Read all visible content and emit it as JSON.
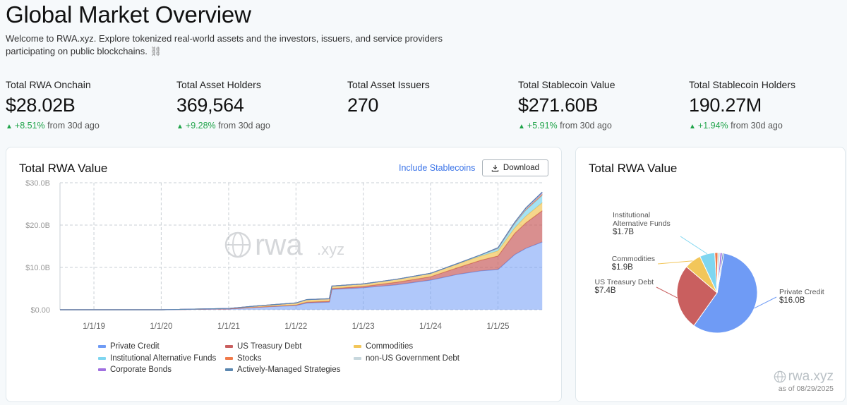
{
  "header": {
    "title": "Global Market Overview",
    "subtitle": "Welcome to RWA.xyz. Explore tokenized real-world assets and the investors, issuers, and service providers participating on public blockchains."
  },
  "stats": [
    {
      "label": "Total RWA Onchain",
      "value": "$28.02B",
      "change": "+8.51%",
      "suffix": "from 30d ago"
    },
    {
      "label": "Total Asset Holders",
      "value": "369,564",
      "change": "+9.28%",
      "suffix": "from 30d ago"
    },
    {
      "label": "Total Asset Issuers",
      "value": "270",
      "change": "",
      "suffix": ""
    },
    {
      "label": "Total Stablecoin Value",
      "value": "$271.60B",
      "change": "+5.91%",
      "suffix": "from 30d ago"
    },
    {
      "label": "Total Stablecoin Holders",
      "value": "190.27M",
      "change": "+1.94%",
      "suffix": "from 30d ago"
    }
  ],
  "area_card": {
    "title": "Total RWA Value",
    "include_stablecoins": "Include Stablecoins",
    "download": "Download",
    "watermark": "rwa.xyz",
    "legend": [
      "Private Credit",
      "US Treasury Debt",
      "Commodities",
      "Institutional Alternative Funds",
      "Stocks",
      "non-US Government Debt",
      "Corporate Bonds",
      "Actively-Managed Strategies"
    ]
  },
  "pie_card": {
    "title": "Total RWA Value",
    "watermark": "rwa.xyz",
    "as_of": "as of 08/29/2025"
  },
  "colors": {
    "private_credit": "#6f9bf5",
    "us_treasury": "#c95f5f",
    "commodities": "#f2c65a",
    "inst_alt_funds": "#7fd6f0",
    "stocks": "#f07a4a",
    "non_us_gov": "#c7d7dd",
    "corporate_bonds": "#a070e0",
    "active_strategies": "#5b87b0",
    "up": "#20a44a"
  },
  "chart_data": [
    {
      "type": "area",
      "title": "Total RWA Value",
      "x_ticks": [
        "1/1/19",
        "1/1/20",
        "1/1/21",
        "1/1/22",
        "1/1/23",
        "1/1/24",
        "1/1/25"
      ],
      "y_ticks": [
        "$0.00",
        "$10.0B",
        "$20.0B",
        "$30.0B"
      ],
      "ylim": [
        0,
        30
      ],
      "y_unit": "B USD",
      "x": [
        "2018-07-01",
        "2019-01-01",
        "2020-01-01",
        "2021-01-01",
        "2021-06-01",
        "2022-01-01",
        "2022-03-01",
        "2022-07-01",
        "2022-07-15",
        "2023-01-01",
        "2023-07-01",
        "2024-01-01",
        "2024-06-01",
        "2024-10-01",
        "2025-01-01",
        "2025-04-01",
        "2025-06-01",
        "2025-08-29"
      ],
      "series": [
        {
          "name": "Private Credit",
          "values": [
            0,
            0,
            0,
            0.2,
            0.6,
            1.0,
            1.6,
            1.8,
            4.8,
            5.2,
            5.9,
            7.0,
            8.4,
            9.2,
            9.5,
            13.0,
            14.5,
            16.0
          ]
        },
        {
          "name": "US Treasury Debt",
          "values": [
            0,
            0,
            0,
            0,
            0,
            0.1,
            0.2,
            0.2,
            0.2,
            0.3,
            0.6,
            0.8,
            1.6,
            2.5,
            3.2,
            5.0,
            6.0,
            7.4
          ]
        },
        {
          "name": "Commodities",
          "values": [
            0,
            0,
            0,
            0.1,
            0.3,
            0.5,
            0.6,
            0.6,
            0.6,
            0.6,
            0.7,
            0.8,
            0.9,
            1.0,
            1.2,
            1.3,
            1.6,
            1.9
          ]
        },
        {
          "name": "Institutional Alternative Funds",
          "values": [
            0,
            0,
            0,
            0,
            0,
            0,
            0,
            0,
            0,
            0,
            0,
            0,
            0.1,
            0.3,
            0.6,
            1.0,
            1.4,
            1.7
          ]
        },
        {
          "name": "Stocks",
          "values": [
            0,
            0,
            0,
            0,
            0,
            0,
            0,
            0,
            0,
            0,
            0,
            0,
            0,
            0,
            0.05,
            0.1,
            0.2,
            0.3
          ]
        },
        {
          "name": "non-US Government Debt",
          "values": [
            0,
            0,
            0,
            0,
            0,
            0,
            0,
            0,
            0,
            0,
            0,
            0,
            0,
            0,
            0.05,
            0.1,
            0.15,
            0.2
          ]
        },
        {
          "name": "Corporate Bonds",
          "values": [
            0,
            0,
            0,
            0,
            0,
            0,
            0,
            0,
            0,
            0,
            0,
            0,
            0,
            0,
            0.05,
            0.1,
            0.15,
            0.2
          ]
        },
        {
          "name": "Actively-Managed Strategies",
          "values": [
            0,
            0,
            0,
            0,
            0,
            0,
            0,
            0,
            0,
            0,
            0,
            0,
            0,
            0,
            0,
            0,
            0.05,
            0.1
          ]
        }
      ]
    },
    {
      "type": "pie",
      "title": "Total RWA Value",
      "slices": [
        {
          "name": "Private Credit",
          "label": "Private Credit",
          "value": 16.0,
          "display": "$16.0B"
        },
        {
          "name": "US Treasury Debt",
          "label": "US Treasury Debt",
          "value": 7.4,
          "display": "$7.4B"
        },
        {
          "name": "Commodities",
          "label": "Commodities",
          "value": 1.9,
          "display": "$1.9B"
        },
        {
          "name": "Institutional Alternative Funds",
          "label": "Institutional Alternative Funds",
          "value": 1.7,
          "display": "$1.7B"
        },
        {
          "name": "Stocks",
          "value": 0.35
        },
        {
          "name": "non-US Government Debt",
          "value": 0.25
        },
        {
          "name": "Corporate Bonds",
          "value": 0.25
        },
        {
          "name": "Actively-Managed Strategies",
          "value": 0.17
        }
      ]
    }
  ]
}
